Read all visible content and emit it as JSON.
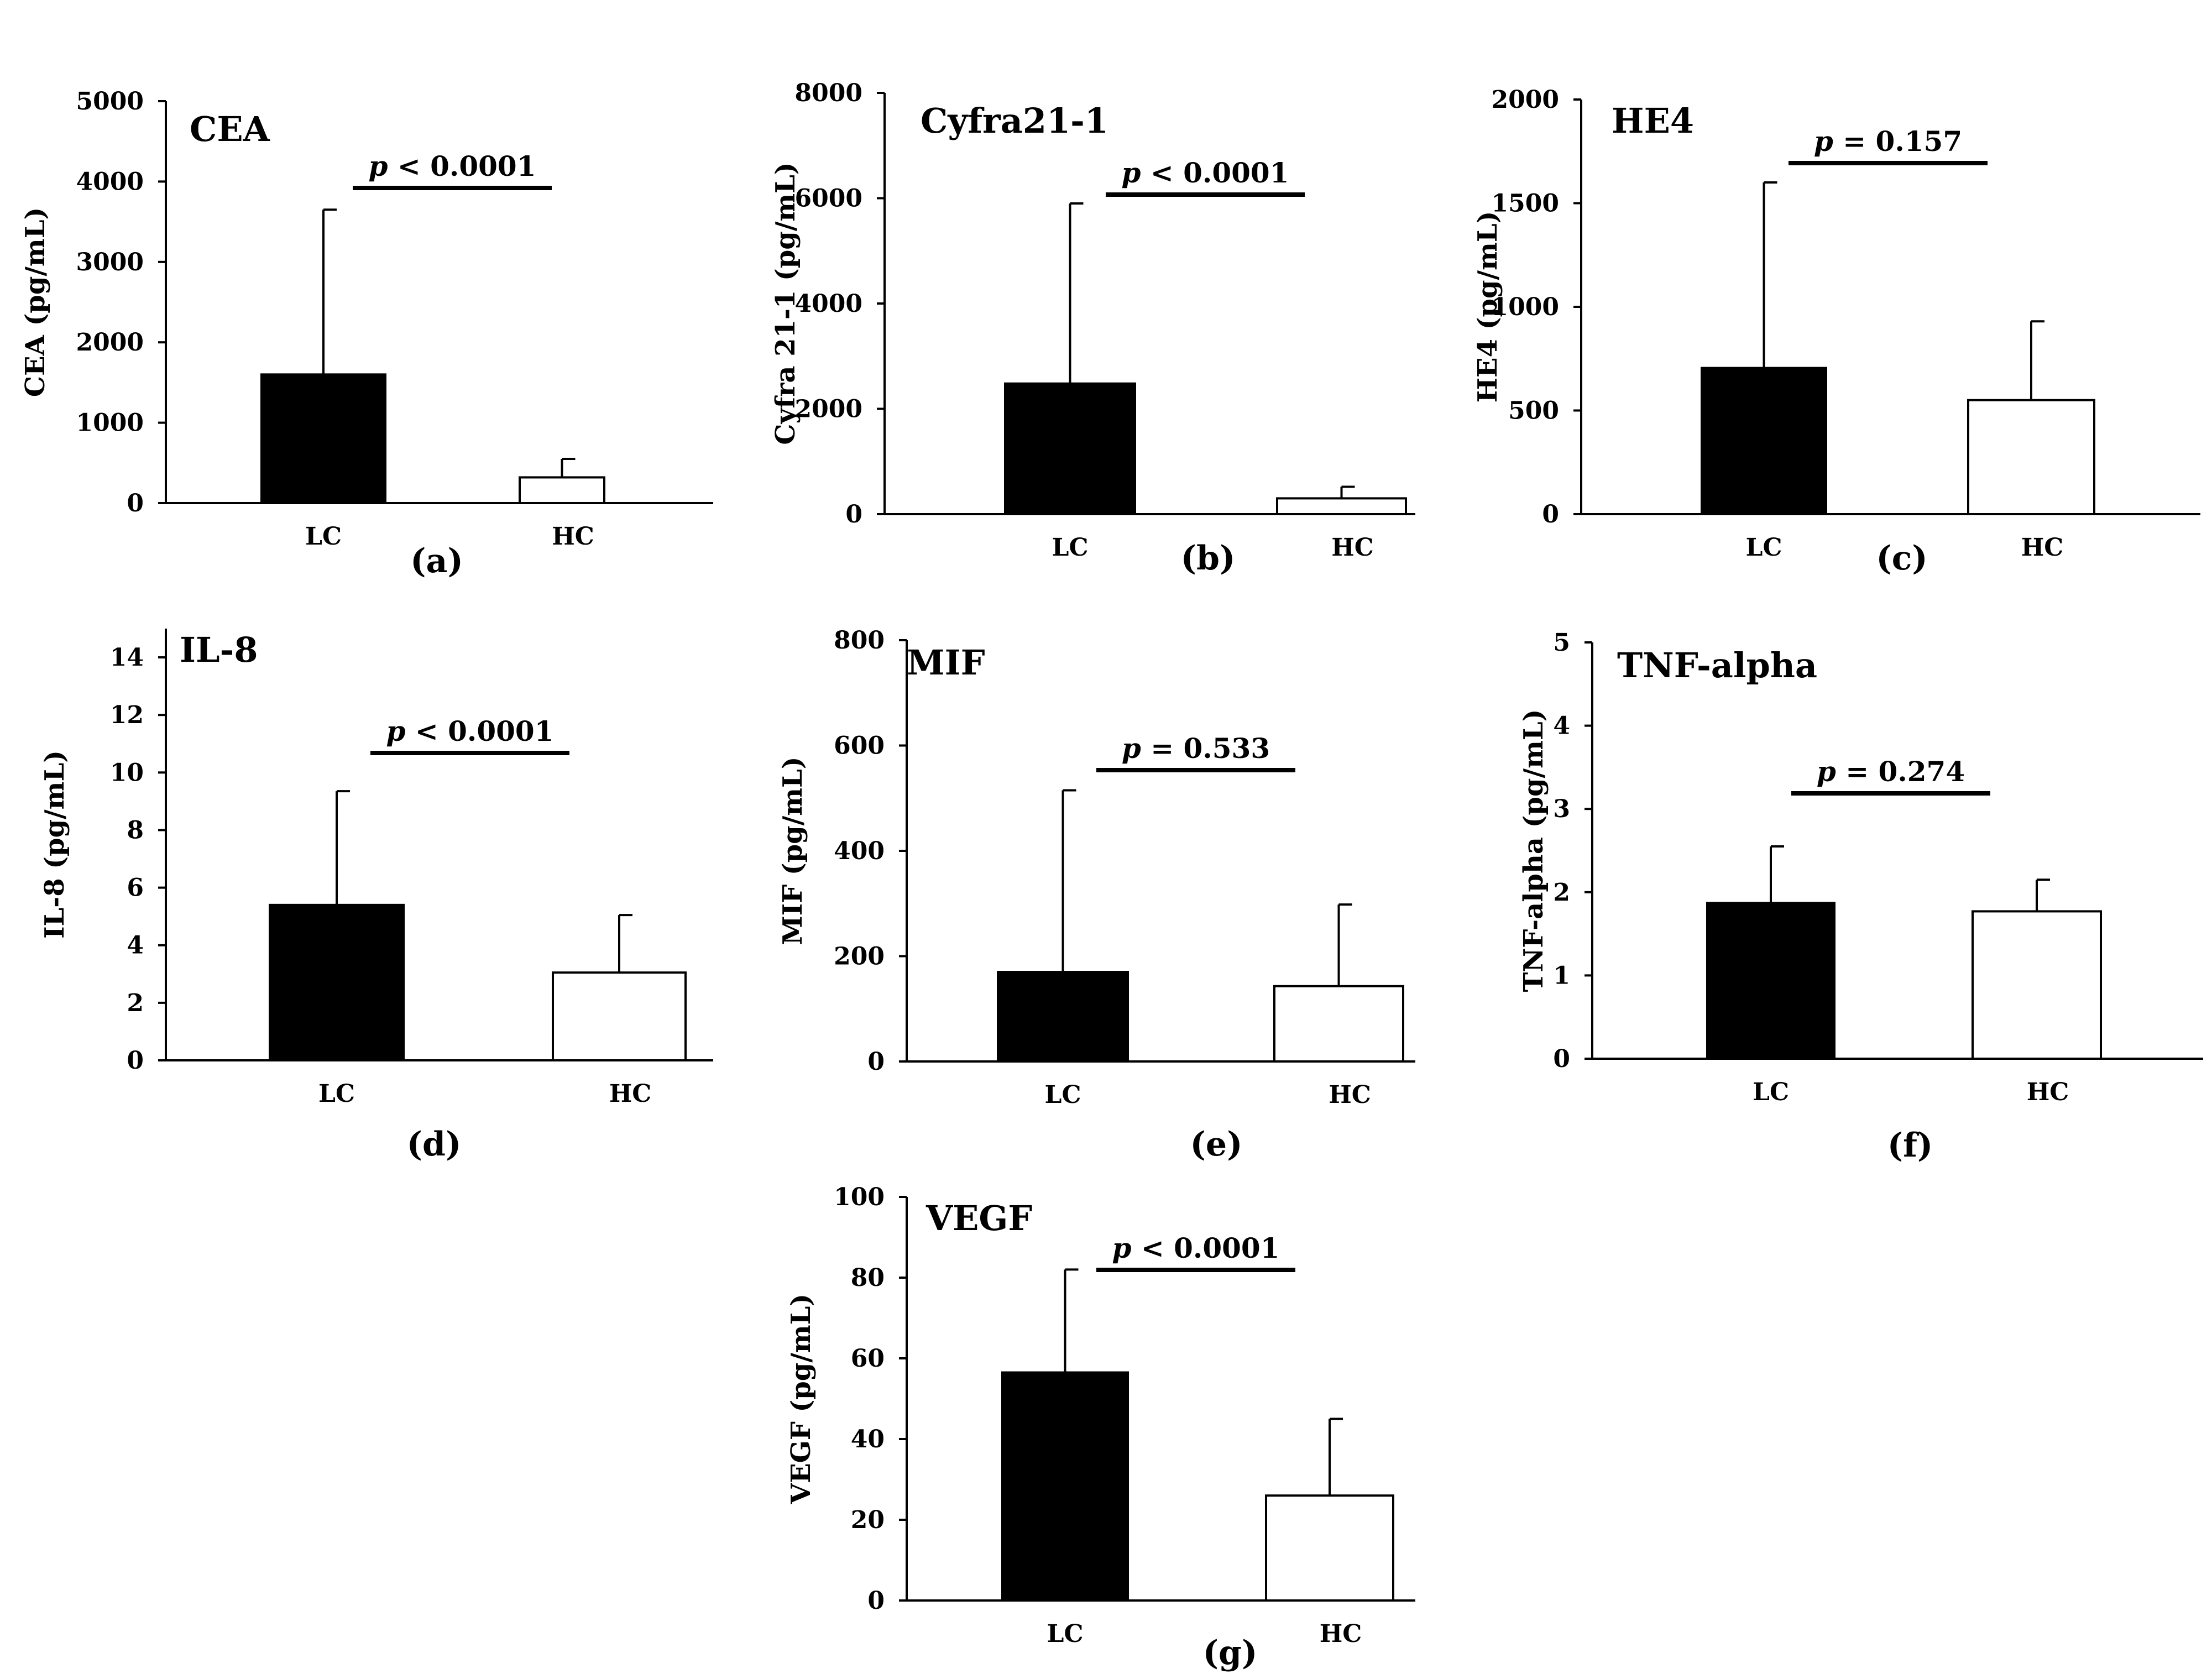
{
  "chart_data": [
    {
      "type": "bar",
      "panel": "(a)",
      "title": "CEA",
      "ylabel": "CEA (pg/mL)",
      "categories": [
        "LC",
        "HC"
      ],
      "values": [
        1600,
        320
      ],
      "error_upper": [
        3650,
        550
      ],
      "ylim": [
        0,
        5000
      ],
      "yticks": [
        0,
        1000,
        2000,
        3000,
        4000,
        5000
      ],
      "p_value": {
        "prefix": "p",
        "text": " < 0.0001"
      }
    },
    {
      "type": "bar",
      "panel": "(b)",
      "title": "Cyfra21-1",
      "ylabel": "Cyfra 21-1 (pg/mL)",
      "categories": [
        "LC",
        "HC"
      ],
      "values": [
        2480,
        300
      ],
      "error_upper": [
        5900,
        520
      ],
      "ylim": [
        0,
        8000
      ],
      "yticks": [
        0,
        2000,
        4000,
        6000,
        8000
      ],
      "p_value": {
        "prefix": "p",
        "text": " < 0.0001"
      }
    },
    {
      "type": "bar",
      "panel": "(c)",
      "title": "HE4",
      "ylabel": "HE4 (pg/mL)",
      "categories": [
        "LC",
        "HC"
      ],
      "values": [
        705,
        550
      ],
      "error_upper": [
        1600,
        930
      ],
      "ylim": [
        0,
        2000
      ],
      "yticks": [
        0,
        500,
        1000,
        1500,
        2000
      ],
      "p_value": {
        "prefix": "p",
        "text": " = 0.157"
      }
    },
    {
      "type": "bar",
      "panel": "(d)",
      "title": "IL-8",
      "ylabel": "IL-8 (pg/mL)",
      "categories": [
        "LC",
        "HC"
      ],
      "values": [
        5.4,
        3.05
      ],
      "error_upper": [
        9.35,
        5.05
      ],
      "ylim": [
        0,
        15
      ],
      "yticks": [
        0,
        2,
        4,
        6,
        8,
        10,
        12,
        14
      ],
      "p_value": {
        "prefix": "p",
        "text": " < 0.0001"
      }
    },
    {
      "type": "bar",
      "panel": "(e)",
      "title": "MIF",
      "ylabel": "MIF (pg/mL)",
      "categories": [
        "LC",
        "HC"
      ],
      "values": [
        170,
        143
      ],
      "error_upper": [
        515,
        298
      ],
      "ylim": [
        0,
        800
      ],
      "yticks": [
        0,
        200,
        400,
        600,
        800
      ],
      "p_value": {
        "prefix": "p",
        "text": " = 0.533"
      }
    },
    {
      "type": "bar",
      "panel": "(f)",
      "title": "TNF-alpha",
      "ylabel": "TNF-alpha (pg/mL)",
      "categories": [
        "LC",
        "HC"
      ],
      "values": [
        1.87,
        1.77
      ],
      "error_upper": [
        2.55,
        2.15
      ],
      "ylim": [
        0,
        5
      ],
      "yticks": [
        0,
        1,
        2,
        3,
        4,
        5
      ],
      "p_value": {
        "prefix": "p",
        "text": " = 0.274"
      }
    },
    {
      "type": "bar",
      "panel": "(g)",
      "title": "VEGF",
      "ylabel": "VEGF (pg/mL)",
      "categories": [
        "LC",
        "HC"
      ],
      "values": [
        56.5,
        26
      ],
      "error_upper": [
        82,
        45
      ],
      "ylim": [
        0,
        100
      ],
      "yticks": [
        0,
        20,
        40,
        60,
        80,
        100
      ],
      "p_value": {
        "prefix": "p",
        "text": " < 0.0001"
      }
    }
  ],
  "colors": {
    "lc_bar": "#000000",
    "hc_bar": "#ffffff",
    "stroke": "#000000"
  }
}
